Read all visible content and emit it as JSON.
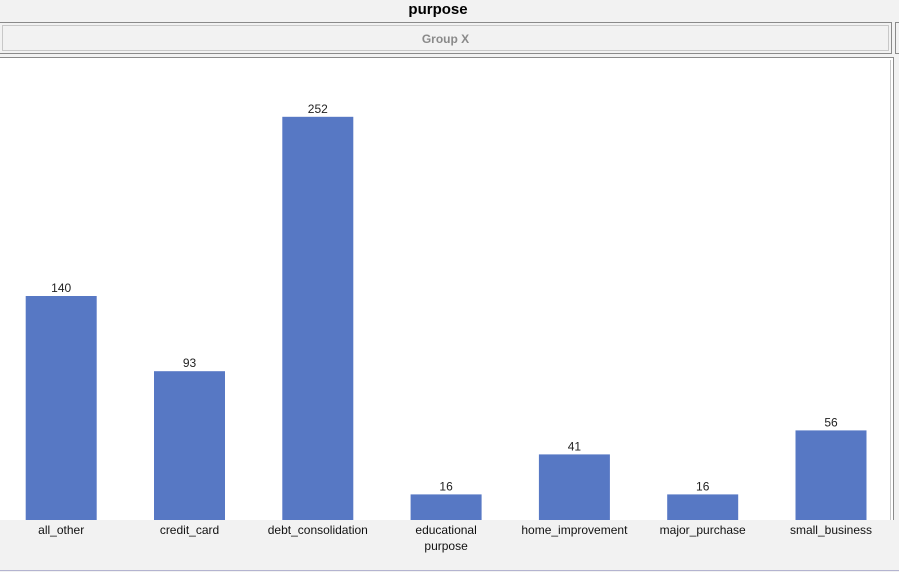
{
  "title": "purpose",
  "group_header": "Group X",
  "colors": {
    "bar": "#5778c4",
    "background": "#f2f2f2",
    "plot_background": "#ffffff"
  },
  "chart_data": {
    "type": "bar",
    "categories": [
      "all_other",
      "credit_card",
      "debt_consolidation",
      "educational purpose",
      "home_improvement",
      "major_purchase",
      "small_business"
    ],
    "values": [
      140,
      93,
      252,
      16,
      41,
      16,
      56
    ],
    "title": "purpose",
    "xlabel": "",
    "ylabel": "",
    "ylim": [
      0,
      270
    ],
    "grid": false,
    "legend": "none",
    "data_labels": true
  }
}
